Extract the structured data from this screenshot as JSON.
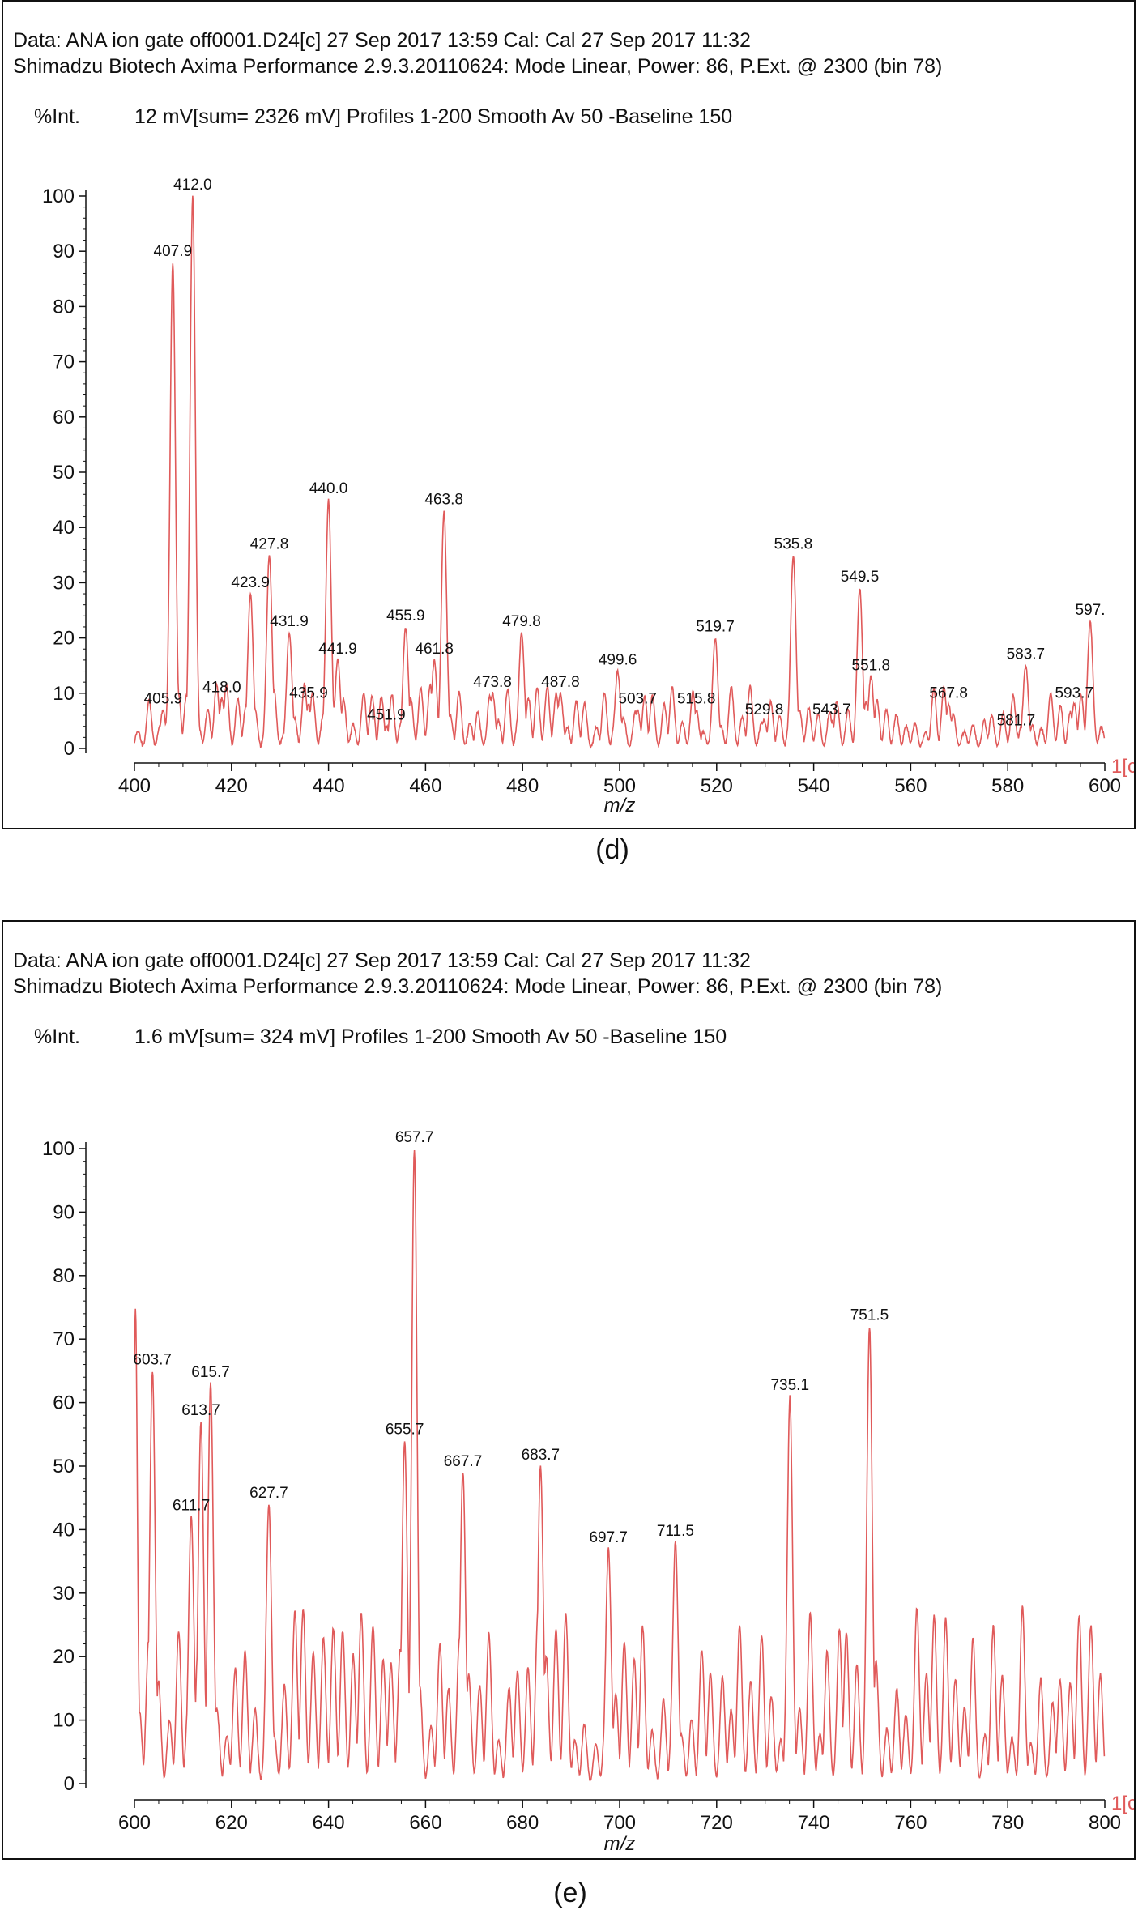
{
  "colors": {
    "spectrum": "#e05a5a",
    "axis": "#111111"
  },
  "chart_data": [
    {
      "type": "line",
      "panel": "(d)",
      "header_line1": "Data: ANA ion gate off0001.D24[c] 27 Sep 2017 13:59 Cal: Cal 27 Sep 2017 11:32",
      "header_line2": "Shimadzu Biotech Axima Performance 2.9.3.20110624: Mode Linear, Power: 86, P.Ext. @ 2300 (bin 78)",
      "ylabel": "%Int.",
      "intensity_info": "12 mV[sum= 2326 mV]  Profiles 1-200 Smooth Av 50 -Baseline 150",
      "xlabel": "m/z",
      "truncated_label": "1[c",
      "xlim": [
        400,
        600
      ],
      "ylim": [
        0,
        100
      ],
      "xticks": [
        "400",
        "420",
        "440",
        "460",
        "480",
        "500",
        "520",
        "540",
        "560",
        "580",
        "600"
      ],
      "yticks": [
        "0",
        "10",
        "20",
        "30",
        "40",
        "50",
        "60",
        "70",
        "80",
        "90",
        "100"
      ],
      "peak_labels": [
        {
          "x": 405.9,
          "y": 7,
          "label": "405.9"
        },
        {
          "x": 407.9,
          "y": 88,
          "label": "407.9"
        },
        {
          "x": 412.0,
          "y": 100,
          "label": "412.0"
        },
        {
          "x": 418.0,
          "y": 9,
          "label": "418.0"
        },
        {
          "x": 423.9,
          "y": 28,
          "label": "423.9"
        },
        {
          "x": 427.8,
          "y": 35,
          "label": "427.8"
        },
        {
          "x": 431.9,
          "y": 21,
          "label": "431.9"
        },
        {
          "x": 435.9,
          "y": 8,
          "label": "435.9"
        },
        {
          "x": 440.0,
          "y": 45,
          "label": "440.0"
        },
        {
          "x": 441.9,
          "y": 16,
          "label": "441.9"
        },
        {
          "x": 451.9,
          "y": 4,
          "label": "451.9"
        },
        {
          "x": 455.9,
          "y": 22,
          "label": "455.9"
        },
        {
          "x": 461.8,
          "y": 16,
          "label": "461.8"
        },
        {
          "x": 463.8,
          "y": 43,
          "label": "463.8"
        },
        {
          "x": 473.8,
          "y": 10,
          "label": "473.8"
        },
        {
          "x": 479.8,
          "y": 21,
          "label": "479.8"
        },
        {
          "x": 487.8,
          "y": 10,
          "label": "487.8"
        },
        {
          "x": 499.6,
          "y": 14,
          "label": "499.6"
        },
        {
          "x": 503.7,
          "y": 7,
          "label": "503.7"
        },
        {
          "x": 515.8,
          "y": 7,
          "label": "515.8"
        },
        {
          "x": 519.7,
          "y": 20,
          "label": "519.7"
        },
        {
          "x": 529.8,
          "y": 5,
          "label": "529.8"
        },
        {
          "x": 535.8,
          "y": 35,
          "label": "535.8"
        },
        {
          "x": 543.7,
          "y": 5,
          "label": "543.7"
        },
        {
          "x": 549.5,
          "y": 29,
          "label": "549.5"
        },
        {
          "x": 551.8,
          "y": 13,
          "label": "551.8"
        },
        {
          "x": 567.8,
          "y": 8,
          "label": "567.8"
        },
        {
          "x": 581.7,
          "y": 3,
          "label": "581.7"
        },
        {
          "x": 583.7,
          "y": 15,
          "label": "583.7"
        },
        {
          "x": 593.7,
          "y": 8,
          "label": "593.7"
        },
        {
          "x": 597.0,
          "y": 23,
          "label": "597."
        }
      ]
    },
    {
      "type": "line",
      "panel": "(e)",
      "header_line1": "Data: ANA ion gate off0001.D24[c] 27 Sep 2017 13:59 Cal: Cal 27 Sep 2017 11:32",
      "header_line2": "Shimadzu Biotech Axima Performance 2.9.3.20110624: Mode Linear, Power: 86, P.Ext. @ 2300 (bin 78)",
      "ylabel": "%Int.",
      "intensity_info": "1.6 mV[sum= 324 mV]  Profiles 1-200 Smooth Av 50 -Baseline 150",
      "xlabel": "m/z",
      "truncated_label": "1[c",
      "xlim": [
        600,
        800
      ],
      "ylim": [
        0,
        100
      ],
      "xticks": [
        "600",
        "620",
        "640",
        "660",
        "680",
        "700",
        "720",
        "740",
        "760",
        "780",
        "800"
      ],
      "yticks": [
        "0",
        "10",
        "20",
        "30",
        "40",
        "50",
        "60",
        "70",
        "80",
        "90",
        "100"
      ],
      "peak_labels": [
        {
          "x": 603.7,
          "y": 65,
          "label": "603.7"
        },
        {
          "x": 611.7,
          "y": 42,
          "label": "611.7"
        },
        {
          "x": 613.7,
          "y": 57,
          "label": "613.7"
        },
        {
          "x": 615.7,
          "y": 63,
          "label": "615.7"
        },
        {
          "x": 627.7,
          "y": 44,
          "label": "627.7"
        },
        {
          "x": 655.7,
          "y": 54,
          "label": "655.7"
        },
        {
          "x": 657.7,
          "y": 100,
          "label": "657.7"
        },
        {
          "x": 667.7,
          "y": 49,
          "label": "667.7"
        },
        {
          "x": 683.7,
          "y": 50,
          "label": "683.7"
        },
        {
          "x": 697.7,
          "y": 37,
          "label": "697.7"
        },
        {
          "x": 711.5,
          "y": 38,
          "label": "711.5"
        },
        {
          "x": 735.1,
          "y": 61,
          "label": "735.1"
        },
        {
          "x": 751.5,
          "y": 72,
          "label": "751.5"
        }
      ]
    }
  ]
}
